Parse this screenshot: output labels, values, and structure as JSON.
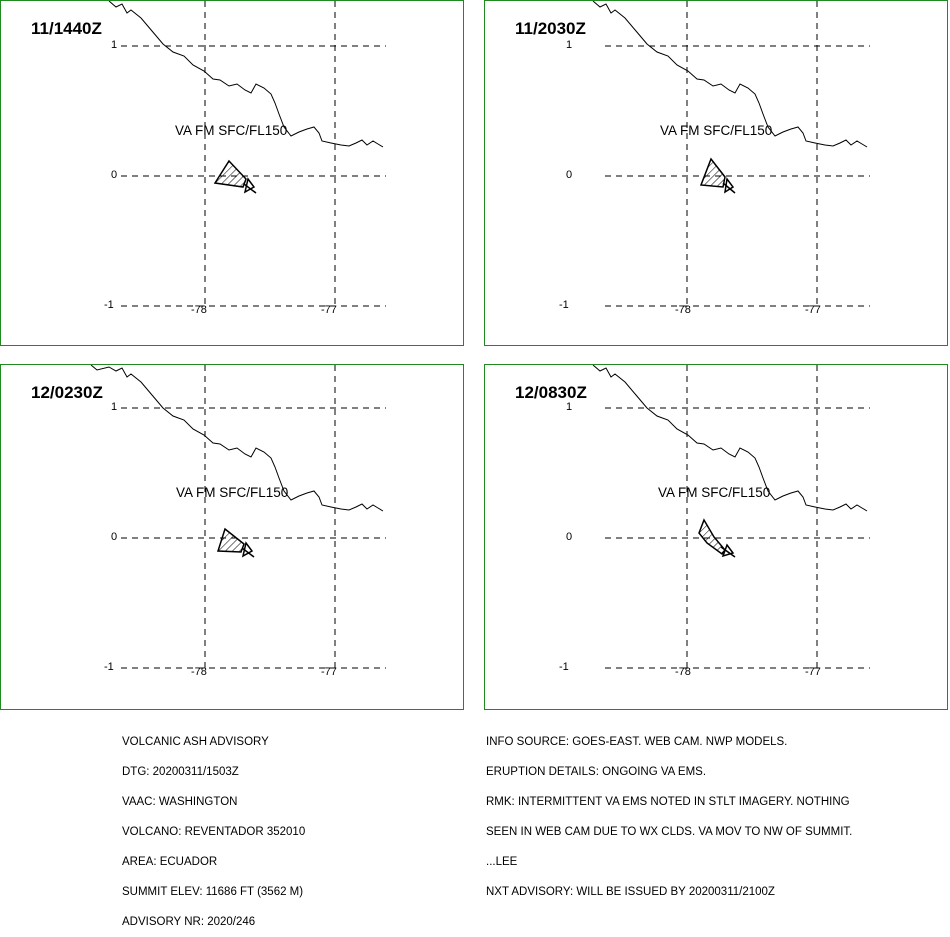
{
  "panels": [
    {
      "time": "11/1440Z",
      "label": "VA FM SFC/FL150"
    },
    {
      "time": "11/2030Z",
      "label": "VA FM SFC/FL150"
    },
    {
      "time": "12/0230Z",
      "label": "VA FM SFC/FL150"
    },
    {
      "time": "12/0830Z",
      "label": "VA FM SFC/FL150"
    }
  ],
  "axes": {
    "lat_ticks": [
      "1",
      "0",
      "-1"
    ],
    "lon_ticks": [
      "-78",
      "-77"
    ]
  },
  "advisory_left": [
    "VOLCANIC ASH ADVISORY",
    "DTG: 20200311/1503Z",
    "VAAC: WASHINGTON",
    "VOLCANO: REVENTADOR 352010",
    "AREA: ECUADOR",
    "SUMMIT ELEV: 11686 FT (3562 M)",
    "ADVISORY NR: 2020/246"
  ],
  "advisory_right": [
    "INFO SOURCE: GOES-EAST. WEB CAM. NWP MODELS.",
    "ERUPTION DETAILS: ONGOING VA EMS.",
    "RMK: INTERMITTENT VA EMS NOTED IN STLT IMAGERY. NOTHING",
    "SEEN IN WEB CAM DUE TO WX CLDS. VA MOV TO NW OF SUMMIT.",
    "...LEE",
    "NXT ADVISORY: WILL BE ISSUED BY 20200311/2100Z"
  ],
  "colors": {
    "border": "#1f8a1f",
    "ink": "#000000"
  }
}
